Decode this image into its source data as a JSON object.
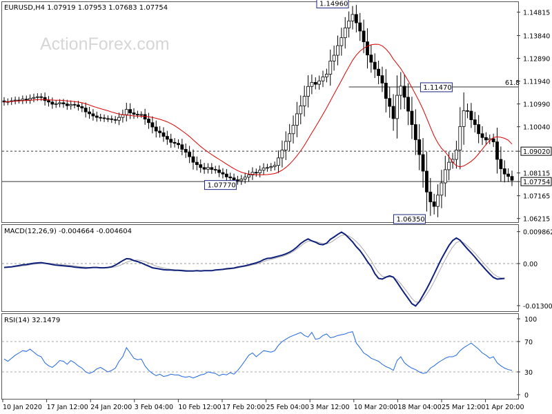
{
  "chart_data": [
    {
      "type": "candlestick",
      "header": "EURUSD,H4  1.07919 1.07953 1.07683 1.07754",
      "watermark": "ActionForex.com",
      "y_ticks": [
        "1.14815",
        "1.13840",
        "1.12890",
        "1.11940",
        "1.10990",
        "1.10040",
        "1.09020",
        "1.08115",
        "1.07754",
        "1.07165",
        "1.06215"
      ],
      "y_tick_values": [
        1.14815,
        1.1384,
        1.1289,
        1.1194,
        1.1099,
        1.1004,
        1.0902,
        1.08115,
        1.07754,
        1.07165,
        1.06215
      ],
      "ylim": [
        1.0612,
        1.1515
      ],
      "highlight_ticks": [
        "1.09020",
        "1.07754"
      ],
      "annotations": [
        {
          "text": "1.14960",
          "index": 94,
          "value": 1.1496
        },
        {
          "text": "1.07770",
          "index": 63,
          "value": 1.0777
        },
        {
          "text": "1.06350",
          "index": 114,
          "value": 1.0635
        },
        {
          "text": "1.11470",
          "index": 122,
          "value": 1.1147
        }
      ],
      "level_lines": [
        {
          "value": 1.0902,
          "style": "dashed"
        },
        {
          "value": 1.07754,
          "style": "solid"
        },
        {
          "value": 1.117,
          "style": "solid",
          "label": "61.8",
          "from_index": 93
        }
      ],
      "closes": [
        1.1107,
        1.1109,
        1.1112,
        1.1115,
        1.1114,
        1.1119,
        1.1116,
        1.1122,
        1.1126,
        1.1129,
        1.1126,
        1.1113,
        1.1107,
        1.1098,
        1.11,
        1.1104,
        1.1099,
        1.1092,
        1.1097,
        1.1095,
        1.1088,
        1.1082,
        1.1066,
        1.1058,
        1.1049,
        1.1043,
        1.1041,
        1.1038,
        1.1037,
        1.1034,
        1.1031,
        1.1043,
        1.1054,
        1.1076,
        1.1062,
        1.1056,
        1.1054,
        1.1055,
        1.1036,
        1.1021,
        1.1003,
        1.0986,
        1.0979,
        1.0964,
        1.0952,
        1.0939,
        1.0935,
        1.0929,
        1.091,
        1.0898,
        1.0879,
        1.0856,
        1.0846,
        1.0834,
        1.0827,
        1.0834,
        1.0826,
        1.0824,
        1.0813,
        1.0807,
        1.0795,
        1.0791,
        1.0783,
        1.0779,
        1.0786,
        1.0794,
        1.0803,
        1.0814,
        1.0812,
        1.0823,
        1.0832,
        1.0834,
        1.0838,
        1.0843,
        1.0874,
        1.0907,
        1.0943,
        1.0975,
        1.101,
        1.1058,
        1.1091,
        1.1131,
        1.1172,
        1.1189,
        1.1181,
        1.1195,
        1.1212,
        1.1223,
        1.1278,
        1.1302,
        1.1342,
        1.1375,
        1.1416,
        1.1445,
        1.1472,
        1.1437,
        1.1403,
        1.1358,
        1.1303,
        1.1273,
        1.1244,
        1.1217,
        1.1186,
        1.1122,
        1.1089,
        1.1038,
        1.1135,
        1.1173,
        1.1127,
        1.1069,
        1.1013,
        1.095,
        1.0888,
        1.0819,
        1.0732,
        1.0691,
        1.0672,
        1.0719,
        1.077,
        1.0825,
        1.0856,
        1.0868,
        1.0907,
        1.1005,
        1.1071,
        1.1069,
        1.1033,
        1.1013,
        1.0975,
        1.0959,
        1.0949,
        1.0954,
        1.0941,
        1.0868,
        1.0829,
        1.0807,
        1.0797,
        1.0781
      ],
      "ma_series": {
        "name": "",
        "note_color": "#dd0000"
      },
      "x_ticks": [
        "10 Jan 2020",
        "17 Jan 12:00",
        "24 Jan 20:00",
        "3 Feb 04:00",
        "10 Feb 12:00",
        "17 Feb 20:00",
        "25 Feb 04:00",
        "3 Mar 12:00",
        "10 Mar 20:00",
        "18 Mar 04:00",
        "25 Mar 12:00",
        "1 Apr 20:00"
      ]
    },
    {
      "type": "line",
      "header": "MACD(12,26,9) -0.004664 -0.004604",
      "y_ticks": [
        "0.009862",
        "0.00",
        "-0.013002"
      ],
      "y_tick_values": [
        0.009862,
        0.0,
        -0.013002
      ],
      "ylim": [
        -0.0145,
        0.0115
      ],
      "series": [
        {
          "color": "#0d1f7a",
          "values": [
            -0.0012,
            -0.0011,
            -0.001,
            -0.0008,
            -0.0006,
            -0.0004,
            -0.0003,
            -0.0001,
            0.0001,
            0.0002,
            0.0003,
            0.0001,
            -0.0001,
            -0.0003,
            -0.0005,
            -0.0006,
            -0.0007,
            -0.0008,
            -0.0009,
            -0.0011,
            -0.0012,
            -0.0013,
            -0.0014,
            -0.0013,
            -0.0012,
            -0.0012,
            -0.0013,
            -0.0013,
            -0.0012,
            -0.001,
            -0.0005,
            0.0002,
            0.0009,
            0.0015,
            0.0014,
            0.0009,
            0.0006,
            0.0002,
            -0.0003,
            -0.0008,
            -0.0013,
            -0.0015,
            -0.0017,
            -0.0019,
            -0.002,
            -0.002,
            -0.0021,
            -0.0021,
            -0.0022,
            -0.0023,
            -0.0023,
            -0.0023,
            -0.0022,
            -0.0023,
            -0.0022,
            -0.0022,
            -0.0022,
            -0.002,
            -0.0019,
            -0.0018,
            -0.0016,
            -0.0015,
            -0.0014,
            -0.0011,
            -0.0009,
            -0.0007,
            -0.0004,
            -0.0001,
            0.0002,
            0.0006,
            0.0012,
            0.0016,
            0.0017,
            0.002,
            0.0023,
            0.0026,
            0.003,
            0.0035,
            0.0042,
            0.0051,
            0.0062,
            0.007,
            0.0076,
            0.007,
            0.0066,
            0.006,
            0.0058,
            0.0063,
            0.0075,
            0.0082,
            0.009,
            0.0097,
            0.009,
            0.0079,
            0.0067,
            0.0052,
            0.004,
            0.0024,
            0.0006,
            -0.0009,
            -0.0031,
            -0.0046,
            -0.0048,
            -0.0042,
            -0.0038,
            -0.0042,
            -0.0058,
            -0.0075,
            -0.0092,
            -0.0108,
            -0.0124,
            -0.0131,
            -0.0118,
            -0.0098,
            -0.0078,
            -0.0056,
            -0.0032,
            -0.0008,
            0.0015,
            0.0036,
            0.0056,
            0.0071,
            0.0079,
            0.0072,
            0.0058,
            0.0045,
            0.0033,
            0.002,
            0.0006,
            -0.0007,
            -0.002,
            -0.0032,
            -0.0043,
            -0.0048,
            -0.0047,
            -0.0046
          ]
        },
        {
          "color": "#a8a8a8",
          "values": [
            -0.0012,
            -0.0012,
            -0.0011,
            -0.001,
            -0.0009,
            -0.0007,
            -0.0006,
            -0.0004,
            -0.0002,
            -0.0001,
            0.0,
            0.0001,
            0.0001,
            0.0,
            -0.0001,
            -0.0003,
            -0.0004,
            -0.0005,
            -0.0006,
            -0.0007,
            -0.0009,
            -0.001,
            -0.0011,
            -0.0012,
            -0.0012,
            -0.0012,
            -0.0012,
            -0.0013,
            -0.0013,
            -0.0012,
            -0.001,
            -0.0007,
            -0.0002,
            0.0004,
            0.0008,
            0.001,
            0.0011,
            0.0009,
            0.0006,
            0.0002,
            -0.0003,
            -0.0008,
            -0.0011,
            -0.0014,
            -0.0016,
            -0.0018,
            -0.0019,
            -0.002,
            -0.002,
            -0.0021,
            -0.0022,
            -0.0022,
            -0.0022,
            -0.0022,
            -0.0022,
            -0.0022,
            -0.0022,
            -0.0021,
            -0.002,
            -0.0019,
            -0.0018,
            -0.0017,
            -0.0015,
            -0.0013,
            -0.0011,
            -0.0009,
            -0.0007,
            -0.0004,
            -0.0002,
            0.0002,
            0.0006,
            0.001,
            0.0013,
            0.0016,
            0.0019,
            0.0022,
            0.0026,
            0.0031,
            0.0037,
            0.0045,
            0.0054,
            0.0063,
            0.0069,
            0.007,
            0.0068,
            0.0065,
            0.0062,
            0.0061,
            0.0065,
            0.0072,
            0.008,
            0.0087,
            0.0089,
            0.0085,
            0.0078,
            0.0068,
            0.0056,
            0.0042,
            0.0025,
            0.0009,
            -0.0011,
            -0.0028,
            -0.0039,
            -0.0042,
            -0.0041,
            -0.0042,
            -0.005,
            -0.0062,
            -0.0077,
            -0.0092,
            -0.0108,
            -0.0119,
            -0.0119,
            -0.011,
            -0.0095,
            -0.0077,
            -0.0056,
            -0.0033,
            -0.001,
            0.0012,
            0.0033,
            0.0051,
            0.0065,
            0.0069,
            0.0064,
            0.0055,
            0.0044,
            0.0032,
            0.0019,
            0.0006,
            -0.0007,
            -0.002,
            -0.0032,
            -0.004,
            -0.0044,
            -0.0046
          ]
        }
      ]
    },
    {
      "type": "line",
      "header": "RSI(14) 32.1479",
      "y_ticks": [
        "100",
        "70",
        "30",
        "0"
      ],
      "y_tick_values": [
        100,
        70,
        30,
        0
      ],
      "ylim": [
        0,
        100
      ],
      "levels": [
        70,
        30
      ],
      "series": [
        {
          "color": "#1f66e0",
          "values": [
            47,
            44,
            48,
            52,
            55,
            58,
            57,
            60,
            56,
            52,
            50,
            42,
            38,
            36,
            40,
            45,
            44,
            40,
            45,
            42,
            38,
            35,
            30,
            28,
            30,
            34,
            36,
            33,
            30,
            32,
            35,
            44,
            50,
            62,
            55,
            48,
            46,
            47,
            38,
            32,
            28,
            25,
            27,
            24,
            25,
            27,
            26,
            26,
            24,
            23,
            24,
            22,
            24,
            26,
            27,
            30,
            29,
            28,
            25,
            27,
            26,
            29,
            27,
            32,
            38,
            45,
            52,
            55,
            50,
            54,
            58,
            57,
            56,
            58,
            65,
            70,
            73,
            76,
            78,
            80,
            82,
            78,
            76,
            82,
            73,
            74,
            78,
            80,
            75,
            76,
            78,
            79,
            80,
            82,
            83,
            68,
            62,
            55,
            52,
            48,
            46,
            44,
            40,
            37,
            35,
            32,
            45,
            50,
            42,
            38,
            35,
            33,
            30,
            28,
            29,
            35,
            38,
            42,
            45,
            48,
            50,
            50,
            52,
            58,
            62,
            65,
            68,
            64,
            60,
            55,
            52,
            48,
            50,
            42,
            38,
            35,
            33,
            32
          ]
        }
      ]
    }
  ]
}
